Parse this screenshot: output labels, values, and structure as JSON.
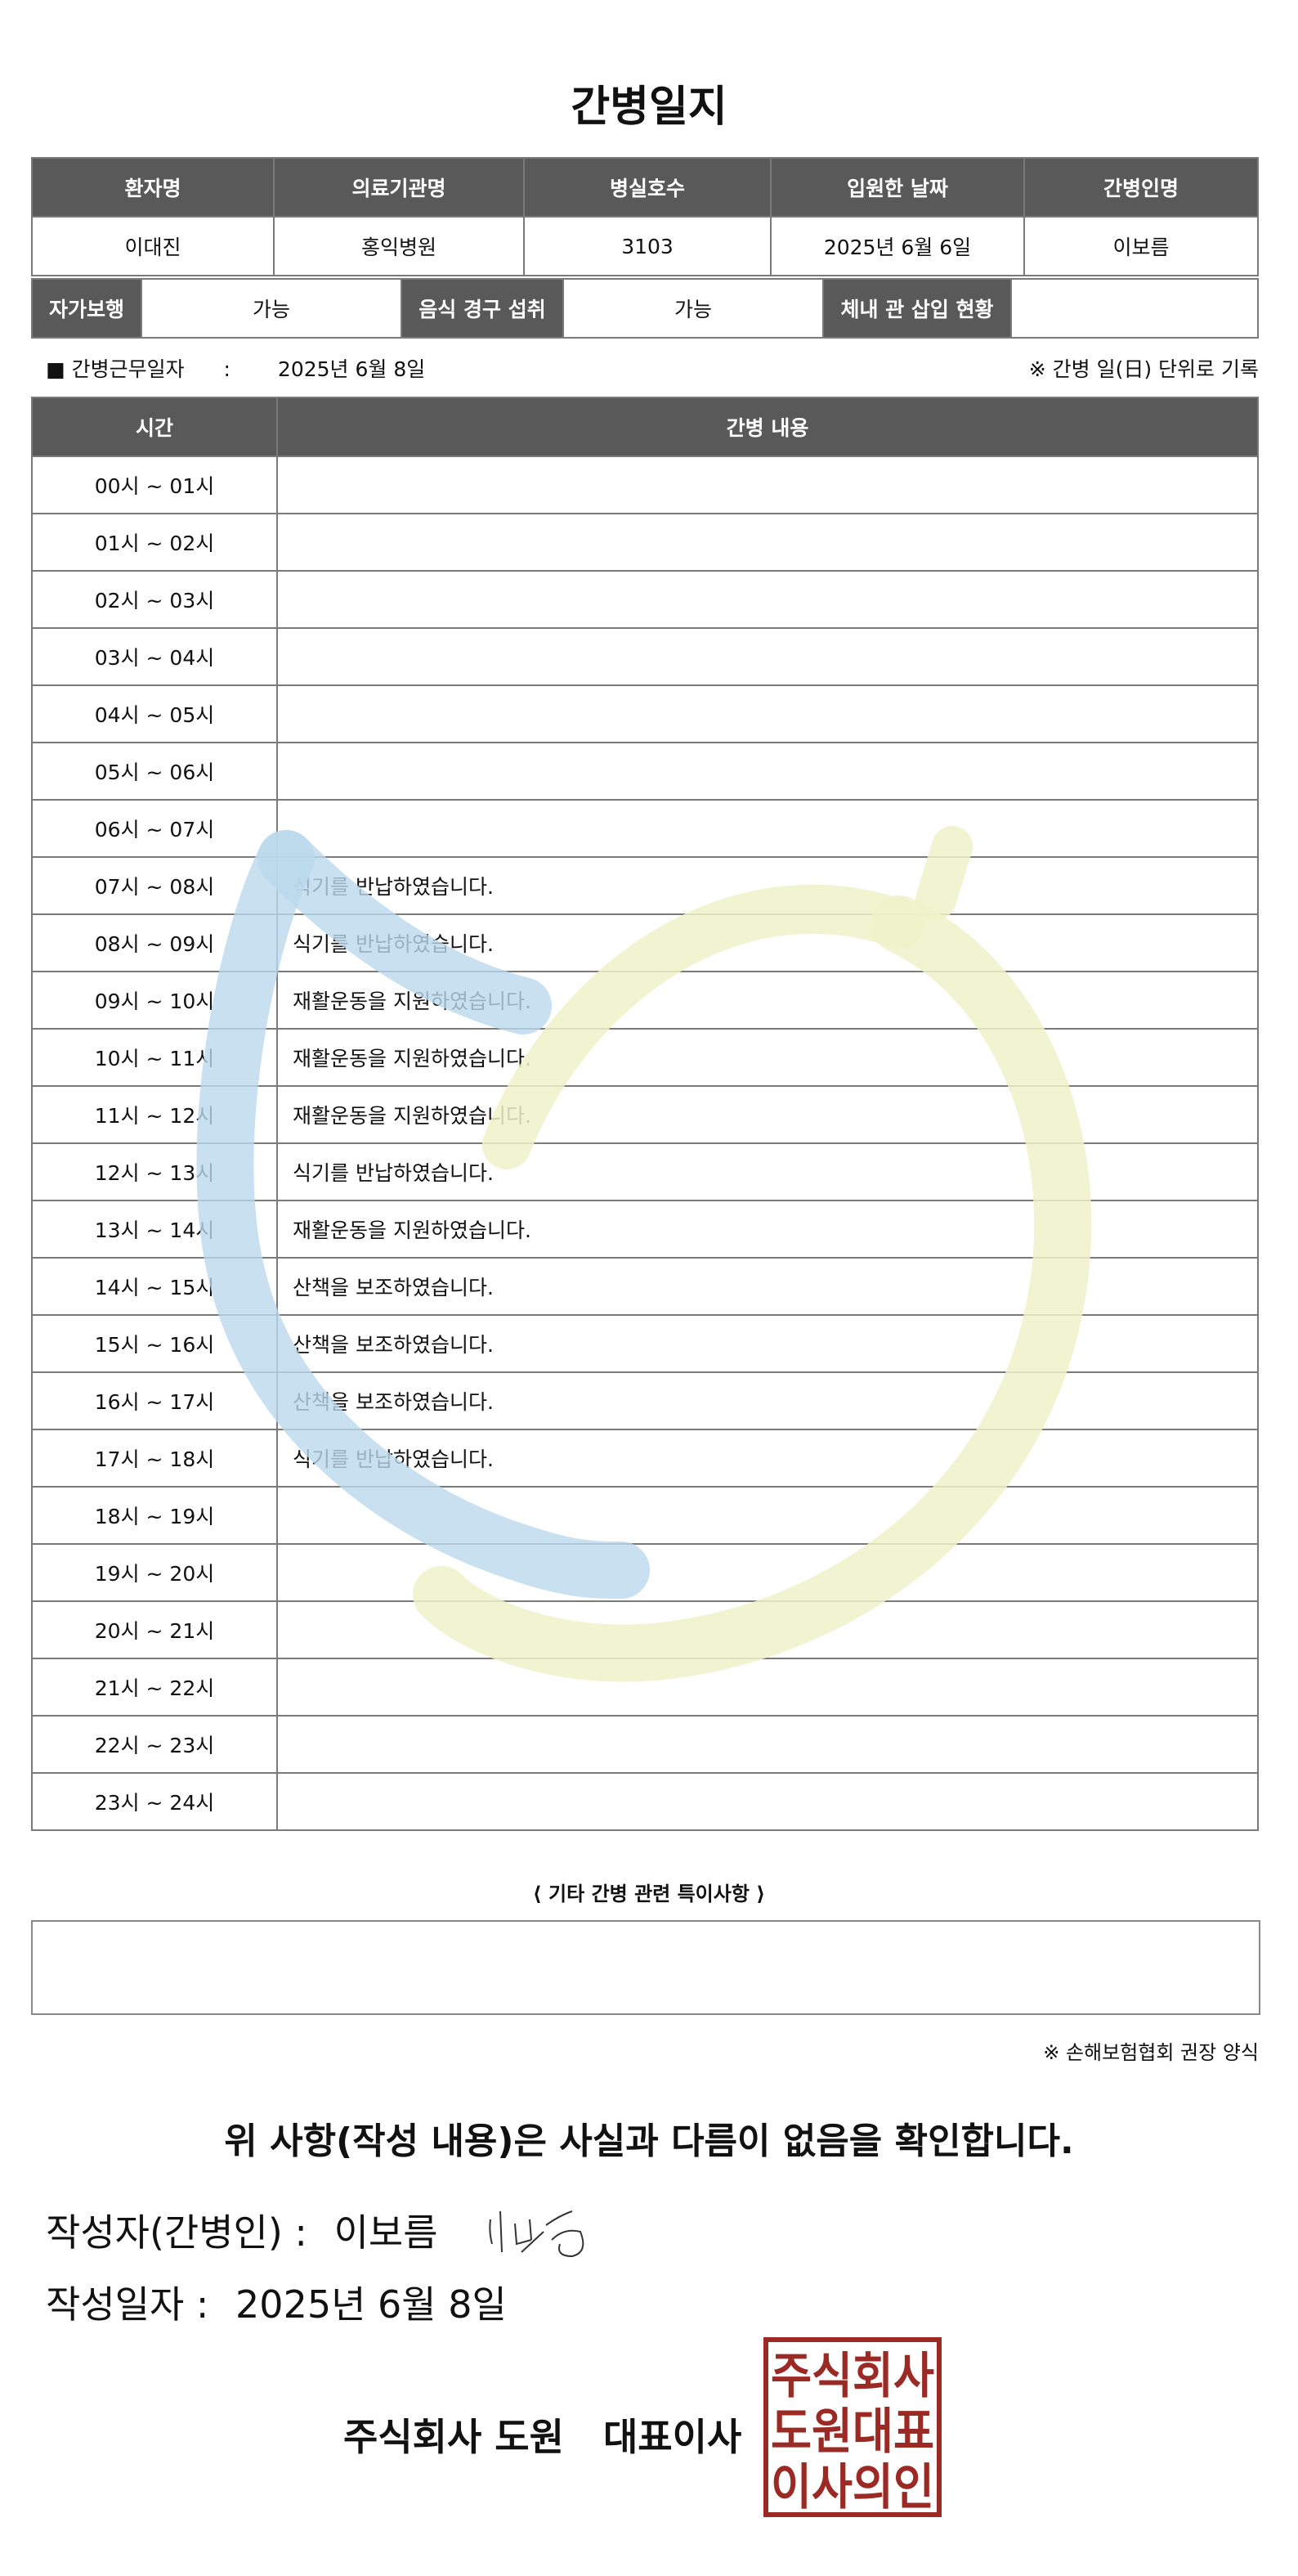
{
  "title": "간병일지",
  "info": {
    "headers": [
      "환자명",
      "의료기관명",
      "병실호수",
      "입원한 날짜",
      "간병인명"
    ],
    "values": [
      "이대진",
      "홍익병원",
      "3103",
      "2025년 6월 6일",
      "이보름"
    ],
    "walking_label": "자가보행",
    "walking_value": "가능",
    "oral_label": "음식 경구 섭취",
    "oral_value": "가능",
    "tube_label": "체내 관 삽입 현황",
    "tube_value": ""
  },
  "work_date": {
    "label": "■ 간병근무일자",
    "sep": ":",
    "value": "2025년 6월 8일",
    "note": "※ 간병 일(日) 단위로 기록"
  },
  "log": {
    "headers": [
      "시간",
      "간병 내용"
    ],
    "rows": [
      {
        "time": "00시 ~ 01시",
        "content": ""
      },
      {
        "time": "01시 ~ 02시",
        "content": ""
      },
      {
        "time": "02시 ~ 03시",
        "content": ""
      },
      {
        "time": "03시 ~ 04시",
        "content": ""
      },
      {
        "time": "04시 ~ 05시",
        "content": ""
      },
      {
        "time": "05시 ~ 06시",
        "content": ""
      },
      {
        "time": "06시 ~ 07시",
        "content": ""
      },
      {
        "time": "07시 ~ 08시",
        "content": "식기를 반납하였습니다."
      },
      {
        "time": "08시 ~ 09시",
        "content": "식기를 반납하였습니다."
      },
      {
        "time": "09시 ~ 10시",
        "content": "재활운동을 지원하였습니다."
      },
      {
        "time": "10시 ~ 11시",
        "content": "재활운동을 지원하였습니다."
      },
      {
        "time": "11시 ~ 12시",
        "content": "재활운동을 지원하였습니다."
      },
      {
        "time": "12시 ~ 13시",
        "content": "식기를 반납하였습니다."
      },
      {
        "time": "13시 ~ 14시",
        "content": "재활운동을 지원하였습니다."
      },
      {
        "time": "14시 ~ 15시",
        "content": "산책을 보조하였습니다."
      },
      {
        "time": "15시 ~ 16시",
        "content": "산책을 보조하였습니다."
      },
      {
        "time": "16시 ~ 17시",
        "content": "산책을 보조하였습니다."
      },
      {
        "time": "17시 ~ 18시",
        "content": "식기를 반납하였습니다."
      },
      {
        "time": "18시 ~ 19시",
        "content": ""
      },
      {
        "time": "19시 ~ 20시",
        "content": ""
      },
      {
        "time": "20시 ~ 21시",
        "content": ""
      },
      {
        "time": "21시 ~ 22시",
        "content": ""
      },
      {
        "time": "22시 ~ 23시",
        "content": ""
      },
      {
        "time": "23시 ~ 24시",
        "content": ""
      }
    ]
  },
  "special": {
    "title": "⟨ 기타 간병 관련 특이사항 ⟩",
    "content": ""
  },
  "form_note": "※ 손해보험협회 권장 양식",
  "confirm_text": "위 사항(작성 내용)은 사실과 다름이 없음을 확인합니다.",
  "writer": {
    "label": "작성자(간병인) :",
    "name": "이보름",
    "signature": "이보름"
  },
  "write_date": {
    "label": "작성일자 :",
    "value": "2025년 6월 8일"
  },
  "company": "주식회사 도원   대표이사",
  "stamp": {
    "text": [
      "주식회사",
      "도원대표",
      "이사의인"
    ],
    "color": "#9b2a25"
  },
  "colors": {
    "header_bg": "#595959",
    "watermark_blue": "#bcd8ec",
    "watermark_yellow": "#eef2c8"
  }
}
